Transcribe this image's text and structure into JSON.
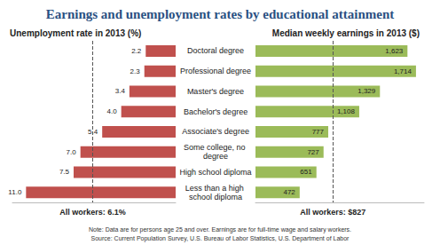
{
  "title": "Earnings and unemployment rates by educational attainment",
  "notes": [
    "Note: Data are for persons age 25 and over. Earnings are for full-time wage and salary workers.",
    "Source: Current Population Survey, U.S. Bureau of Labor Statistics, U.S. Department of Labor"
  ],
  "chart_data": [
    {
      "type": "bar",
      "orientation": "horizontal",
      "title": "Unemployment rate in 2013 (%)",
      "categories": [
        "Doctoral degree",
        "Professional degree",
        "Master's degree",
        "Bachelor's degree",
        "Associate's degree",
        "Some college, no degree",
        "High school diploma",
        "Less than a high school diploma"
      ],
      "values": [
        2.2,
        2.3,
        3.4,
        4.0,
        5.4,
        7.0,
        7.5,
        11.0
      ],
      "value_labels": [
        "2.2",
        "2.3",
        "3.4",
        "4.0",
        "5.4",
        "7.0",
        "7.5",
        "11.0"
      ],
      "color": "#c0504d",
      "xlim": [
        0,
        12
      ],
      "grid": false,
      "data_labels": true,
      "tick_labels": "y",
      "annotations": [
        {
          "text": "All workers: 6.1%",
          "value": 6.1
        }
      ]
    },
    {
      "type": "bar",
      "orientation": "horizontal",
      "title": "Median weekly earnings in 2013 ($)",
      "categories": [
        "Doctoral degree",
        "Professional degree",
        "Master's degree",
        "Bachelor's degree",
        "Associate's degree",
        "Some college, no degree",
        "High school diploma",
        "Less than a high school diploma"
      ],
      "values": [
        1623,
        1714,
        1329,
        1108,
        777,
        727,
        651,
        472
      ],
      "value_labels": [
        "1,623",
        "1,714",
        "1,329",
        "1,108",
        "777",
        "727",
        "651",
        "472"
      ],
      "color": "#9bbb59",
      "xlim": [
        0,
        1800
      ],
      "grid": false,
      "data_labels": true,
      "tick_labels": false,
      "annotations": [
        {
          "text": "All workers: $827",
          "value": 827
        }
      ]
    }
  ]
}
